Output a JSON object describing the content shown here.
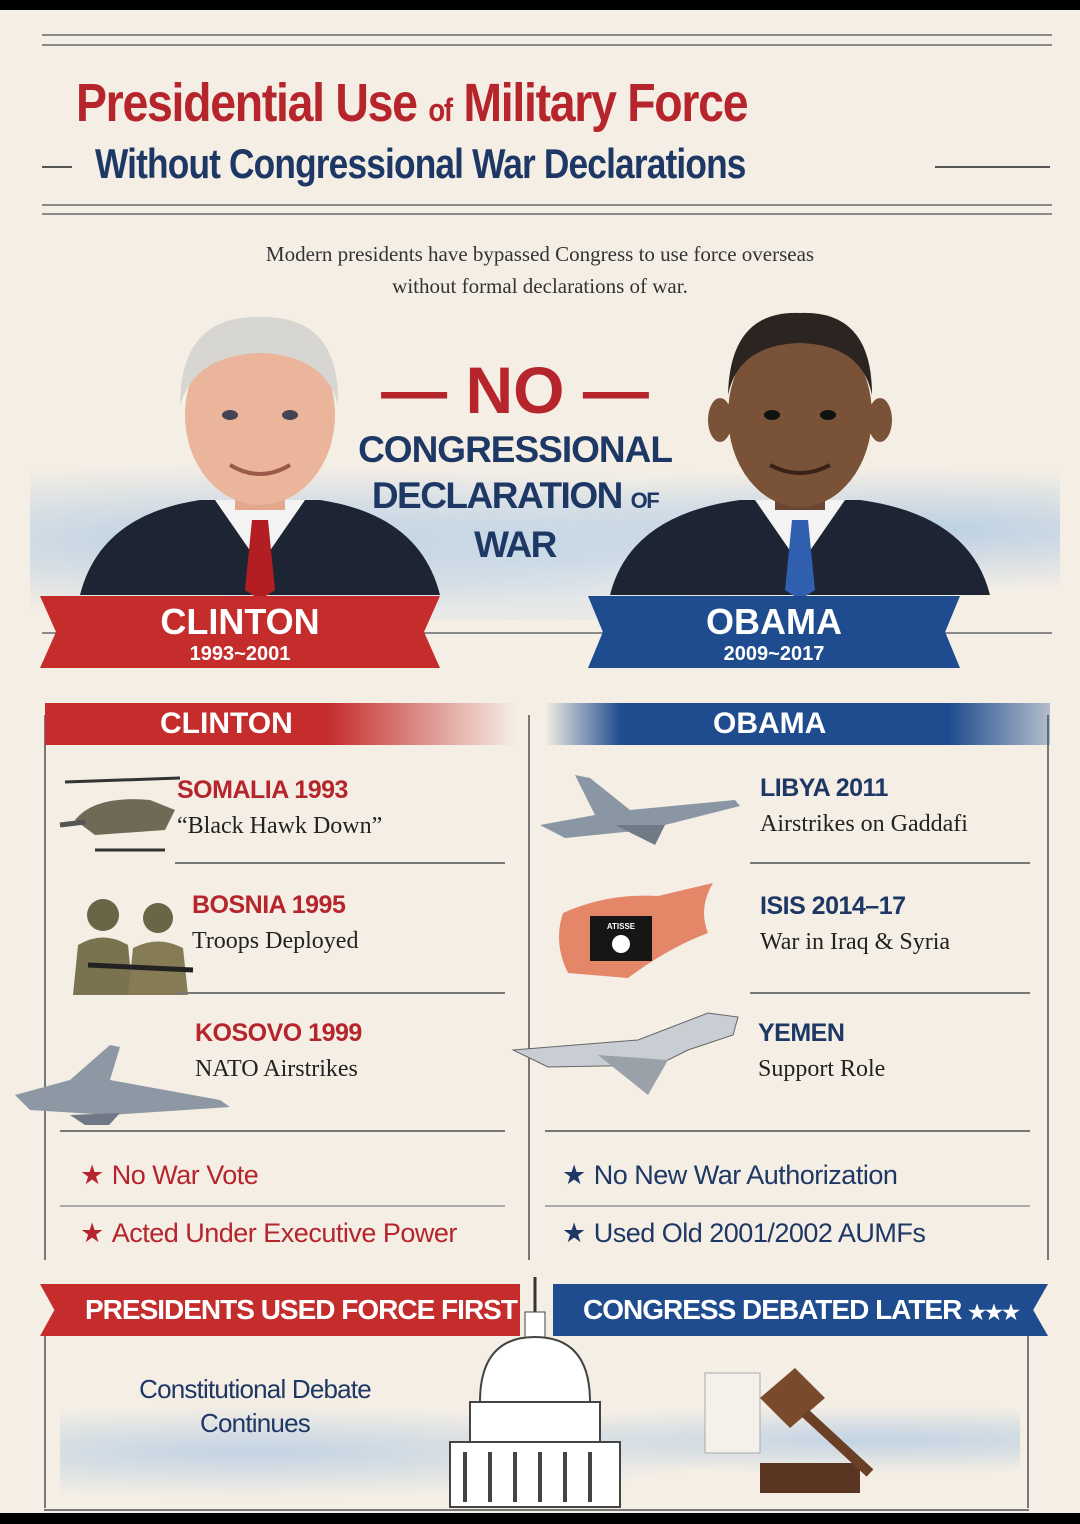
{
  "header": {
    "title_part1": "Presidential Use ",
    "title_of": "of",
    "title_part2": " Military Force",
    "subtitle": "Without Congressional War Declarations",
    "description_line1": "Modern presidents have bypassed Congress to use force overseas",
    "description_line2": "without formal declarations of war."
  },
  "center": {
    "no": "NO",
    "line1": "CONGRESSIONAL",
    "line2_a": "DECLARATION ",
    "line2_of": "OF",
    "line2_b": " WAR"
  },
  "presidents": [
    {
      "name": "CLINTON",
      "years": "1993~2001"
    },
    {
      "name": "OBAMA",
      "years": "2009~2017"
    }
  ],
  "clinton": {
    "header": "CLINTON",
    "items": [
      {
        "title": "SOMALIA 1993",
        "sub": "“Black Hawk Down”",
        "icon": "helicopter-icon"
      },
      {
        "title": "BOSNIA 1995",
        "sub": "Troops Deployed",
        "icon": "soldiers-icon"
      },
      {
        "title": "KOSOVO 1999",
        "sub": "NATO Airstrikes",
        "icon": "fighter-jet-icon"
      }
    ],
    "bullets": [
      "No War Vote",
      "Acted Under Executive Power"
    ]
  },
  "obama": {
    "header": "OBAMA",
    "items": [
      {
        "title": "LIBYA 2011",
        "sub": "Airstrikes on Gaddafi",
        "icon": "fighter-jet-icon"
      },
      {
        "title": "ISIS 2014–17",
        "sub": "War in Iraq & Syria",
        "icon": "map-flag-icon"
      },
      {
        "title": "YEMEN",
        "sub": "Support Role",
        "icon": "drone-icon"
      }
    ],
    "bullets": [
      "No New War Authorization",
      "Used Old 2001/2002 AUMFs"
    ]
  },
  "flag_text": "ATISSE",
  "footer": {
    "left_banner": "PRESIDENTS USED FORCE FIRST",
    "right_banner": "CONGRESS DEBATED LATER",
    "stars": "★★★",
    "note_line1": "Constitutional Debate",
    "note_line2": "Continues"
  },
  "colors": {
    "red": "#b5252b",
    "navy": "#1e3866",
    "background": "#f4eee5"
  }
}
